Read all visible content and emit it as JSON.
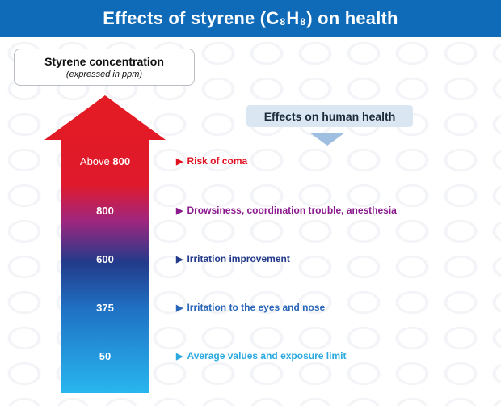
{
  "title": {
    "prefix": "Effects of styrene (C",
    "sub1": "8",
    "mid": " H",
    "sub2": "8",
    "suffix": ") on health"
  },
  "concentration": {
    "title": "Styrene concentration",
    "subtitle": "(expressed in ppm)"
  },
  "effects_header": "Effects on human health",
  "levels": [
    {
      "prefix": "Above ",
      "value": "800",
      "effect": "Risk of coma",
      "color": "#e01020"
    },
    {
      "prefix": "",
      "value": "800",
      "effect": "Drowsiness, coordination trouble, anesthesia",
      "color": "#8a1a8e"
    },
    {
      "prefix": "",
      "value": "600",
      "effect": "Irritation improvement",
      "color": "#233a8a"
    },
    {
      "prefix": "",
      "value": "375",
      "effect": "Irritation to the eyes and nose",
      "color": "#2a66b8"
    },
    {
      "prefix": "",
      "value": "50",
      "effect": "Average values and exposure limit",
      "color": "#2ba9df"
    }
  ],
  "colors": {
    "header_bg": "#0f6bb8",
    "arrow_top": "#e31b23",
    "arrow_mid": "#233a8a",
    "arrow_bottom": "#29b6ef"
  }
}
